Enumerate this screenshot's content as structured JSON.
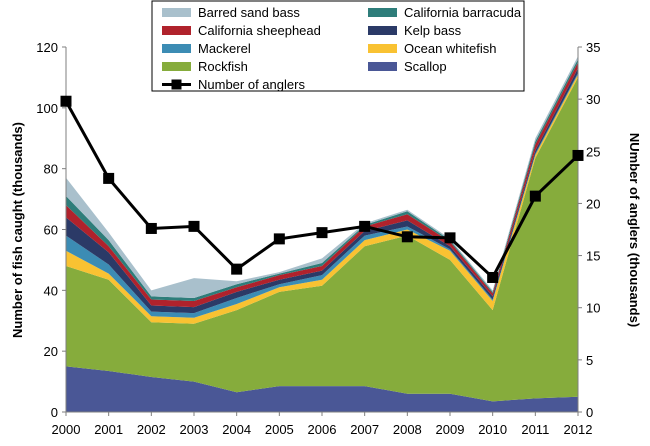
{
  "chart_data": {
    "type": "area",
    "x": [
      2000,
      2001,
      2002,
      2003,
      2004,
      2005,
      2006,
      2007,
      2008,
      2009,
      2010,
      2011,
      2012
    ],
    "y_left": {
      "label": "Number of fish caught (thousands)",
      "range": [
        0,
        120
      ],
      "ticks": [
        "0",
        "20",
        "40",
        "60",
        "80",
        "100",
        "120"
      ]
    },
    "y_right": {
      "label": "NUmber of anglers (thousands)",
      "range": [
        0,
        35
      ],
      "ticks": [
        "0",
        "5",
        "10",
        "15",
        "20",
        "25",
        "30",
        "35"
      ]
    },
    "x_ticks": [
      "2000",
      "2001",
      "2002",
      "2003",
      "2004",
      "2005",
      "2006",
      "2007",
      "2008",
      "2009",
      "2010",
      "2011",
      "2012"
    ],
    "stacked_series": [
      {
        "name": "Scallop",
        "color": "#4a5796",
        "values": [
          15,
          13.5,
          11.5,
          10,
          6.5,
          8.5,
          8.5,
          8.5,
          6,
          6,
          3.5,
          4.5,
          5
        ]
      },
      {
        "name": "Rockfish",
        "color": "#86ac3c",
        "values": [
          33,
          30,
          18,
          19,
          27,
          31,
          33,
          46,
          52,
          44,
          30,
          79,
          105
        ]
      },
      {
        "name": "Ocean whitefish",
        "color": "#f9c232",
        "values": [
          5,
          2,
          2,
          2,
          2,
          1.5,
          2,
          2,
          2,
          3,
          3,
          1,
          1
        ]
      },
      {
        "name": "Mackerel",
        "color": "#3c8cb4",
        "values": [
          5,
          3,
          1.5,
          1.5,
          2,
          1,
          1.5,
          1.5,
          1,
          0.5,
          0.5,
          0.5,
          0.5
        ]
      },
      {
        "name": "Kelp bass",
        "color": "#2b3a67",
        "values": [
          6,
          4,
          2,
          2,
          2,
          1.5,
          1.5,
          1.5,
          2,
          1,
          1,
          1,
          1.5
        ]
      },
      {
        "name": "California sheephead",
        "color": "#b0222c",
        "values": [
          4,
          2,
          2,
          2,
          1.5,
          1.5,
          1.5,
          1.5,
          2,
          1.5,
          1,
          2,
          2
        ]
      },
      {
        "name": "California barracuda",
        "color": "#2e7d7a",
        "values": [
          3,
          2,
          1,
          1,
          1,
          0.5,
          1,
          0.5,
          1,
          0.5,
          0.5,
          1,
          1
        ]
      },
      {
        "name": "Barred sand bass",
        "color": "#a9c0cc",
        "values": [
          6,
          2.5,
          2,
          6.5,
          1,
          0.5,
          1.5,
          0.5,
          0.5,
          0.5,
          0.5,
          1,
          1
        ]
      }
    ],
    "line_series": {
      "name": "Number of anglers",
      "axis": "right",
      "color": "#000000",
      "values": [
        29.8,
        22.4,
        17.6,
        17.8,
        13.7,
        16.6,
        17.2,
        17.8,
        16.8,
        16.7,
        12.9,
        20.7,
        24.6
      ]
    },
    "legend": {
      "placement": "top-center",
      "entries": [
        {
          "label": "Barred sand bass",
          "kind": "swatch",
          "color": "#a9c0cc"
        },
        {
          "label": "California barracuda",
          "kind": "swatch",
          "color": "#2e7d7a"
        },
        {
          "label": "California sheephead",
          "kind": "swatch",
          "color": "#b0222c"
        },
        {
          "label": "Kelp bass",
          "kind": "swatch",
          "color": "#2b3a67"
        },
        {
          "label": "Mackerel",
          "kind": "swatch",
          "color": "#3c8cb4"
        },
        {
          "label": "Ocean whitefish",
          "kind": "swatch",
          "color": "#f9c232"
        },
        {
          "label": "Rockfish",
          "kind": "swatch",
          "color": "#86ac3c"
        },
        {
          "label": "Scallop",
          "kind": "swatch",
          "color": "#4a5796"
        },
        {
          "label": "Number of anglers",
          "kind": "line",
          "color": "#000000"
        }
      ]
    },
    "grid": false
  }
}
